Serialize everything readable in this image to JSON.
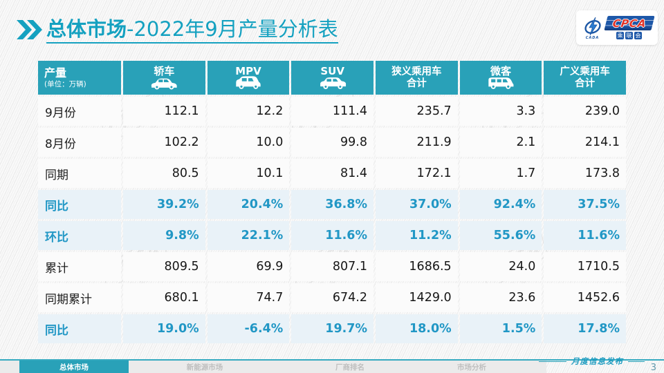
{
  "page": {
    "title_bold": "总体市场",
    "title_rest": "-2022年9月产量分析表",
    "footer_note": "月度信息发布",
    "page_number": "3"
  },
  "logo": {
    "cpca": "CPCA",
    "sub_chars": [
      "乘",
      "联",
      "会"
    ],
    "cada": "CADA"
  },
  "watermark": {
    "big": "CPCA",
    "small": "乘联会"
  },
  "table": {
    "corner": {
      "title": "产量",
      "subtitle": "(单位：万辆)"
    },
    "columns": [
      {
        "label": "轿车",
        "icon": "sedan-icon"
      },
      {
        "label": "MPV",
        "icon": "mpv-icon"
      },
      {
        "label": "SUV",
        "icon": "suv-icon"
      },
      {
        "label": "狭义乘用车",
        "label2": "合计",
        "icon": null
      },
      {
        "label": "微客",
        "icon": "minivan-icon"
      },
      {
        "label": "广义乘用车",
        "label2": "合计",
        "icon": null
      }
    ],
    "rows": [
      {
        "label": "9月份",
        "type": "normal",
        "values": [
          "112.1",
          "12.2",
          "111.4",
          "235.7",
          "3.3",
          "239.0"
        ]
      },
      {
        "label": "8月份",
        "type": "normal",
        "values": [
          "102.2",
          "10.0",
          "99.8",
          "211.9",
          "2.1",
          "214.1"
        ]
      },
      {
        "label": "同期",
        "type": "normal",
        "values": [
          "80.5",
          "10.1",
          "81.4",
          "172.1",
          "1.7",
          "173.8"
        ]
      },
      {
        "label": "同比",
        "type": "percent",
        "values": [
          "39.2%",
          "20.4%",
          "36.8%",
          "37.0%",
          "92.4%",
          "37.5%"
        ]
      },
      {
        "label": "环比",
        "type": "percent",
        "values": [
          "9.8%",
          "22.1%",
          "11.6%",
          "11.2%",
          "55.6%",
          "11.6%"
        ]
      },
      {
        "label": "累计",
        "type": "normal",
        "values": [
          "809.5",
          "69.9",
          "807.1",
          "1686.5",
          "24.0",
          "1710.5"
        ]
      },
      {
        "label": "同期累计",
        "type": "normal",
        "values": [
          "680.1",
          "74.7",
          "674.2",
          "1429.0",
          "23.6",
          "1452.6"
        ]
      },
      {
        "label": "同比",
        "type": "percent",
        "values": [
          "19.0%",
          "-6.4%",
          "19.7%",
          "18.0%",
          "1.5%",
          "17.8%"
        ]
      }
    ]
  },
  "chart_data": {
    "type": "table",
    "title": "总体市场-2022年9月产量分析表",
    "unit": "万辆",
    "categories": [
      "轿车",
      "MPV",
      "SUV",
      "狭义乘用车合计",
      "微客",
      "广义乘用车合计"
    ],
    "series": [
      {
        "name": "9月份",
        "values": [
          112.1,
          12.2,
          111.4,
          235.7,
          3.3,
          239.0
        ]
      },
      {
        "name": "8月份",
        "values": [
          102.2,
          10.0,
          99.8,
          211.9,
          2.1,
          214.1
        ]
      },
      {
        "name": "同期",
        "values": [
          80.5,
          10.1,
          81.4,
          172.1,
          1.7,
          173.8
        ]
      },
      {
        "name": "同比",
        "values": [
          "39.2%",
          "20.4%",
          "36.8%",
          "37.0%",
          "92.4%",
          "37.5%"
        ]
      },
      {
        "name": "环比",
        "values": [
          "9.8%",
          "22.1%",
          "11.6%",
          "11.2%",
          "55.6%",
          "11.6%"
        ]
      },
      {
        "name": "累计",
        "values": [
          809.5,
          69.9,
          807.1,
          1686.5,
          24.0,
          1710.5
        ]
      },
      {
        "name": "同期累计",
        "values": [
          680.1,
          74.7,
          674.2,
          1429.0,
          23.6,
          1452.6
        ]
      },
      {
        "name": "同比(累计)",
        "values": [
          "19.0%",
          "-6.4%",
          "19.7%",
          "18.0%",
          "1.5%",
          "17.8%"
        ]
      }
    ]
  },
  "tabs": [
    {
      "label": "总体市场",
      "active": true
    },
    {
      "label": "新能源市场",
      "active": false
    },
    {
      "label": "厂商排名",
      "active": false
    },
    {
      "label": "市场分析",
      "active": false
    }
  ],
  "colors": {
    "accent_teal": "#14a1c0",
    "header_teal": "#29a1b8",
    "percent_text": "#2197c5",
    "percent_row_bg": "#e9f2f8",
    "logo_blue": "#1d57a8",
    "logo_red": "#e03226"
  }
}
